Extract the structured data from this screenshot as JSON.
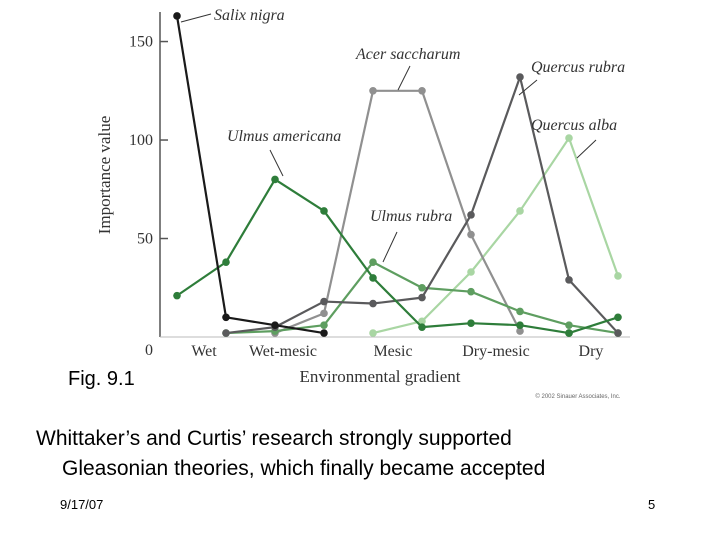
{
  "chart_data": {
    "type": "line",
    "ylabel": "Importance value",
    "xlabel": "Environmental gradient",
    "ylim": [
      0,
      165
    ],
    "yticks": [
      "0",
      "50",
      "100",
      "150"
    ],
    "categories": [
      "Wet",
      "Wet-mesic",
      "Mesic",
      "Dry-mesic",
      "Dry"
    ],
    "copyright": "© 2002 Sinauer Associates, Inc.",
    "series": [
      {
        "name": "Salix nigra",
        "color": "#1a1a1a",
        "x": [
          0,
          1,
          2,
          3
        ],
        "y": [
          163,
          10,
          6,
          2
        ]
      },
      {
        "name": "Ulmus americana",
        "color": "#2e7d3a",
        "x": [
          0,
          1,
          2,
          3,
          4,
          5,
          6,
          7,
          8
        ],
        "y": [
          21,
          38,
          80,
          64,
          30,
          5,
          7,
          6,
          2
        ]
      },
      {
        "name": "Acer saccharum",
        "color": "#909090",
        "x": [
          2,
          3,
          4,
          5,
          6,
          7
        ],
        "y": [
          2,
          12,
          125,
          125,
          52,
          3
        ]
      },
      {
        "name": "Quercus rubra",
        "color": "#5a5a5c",
        "x": [
          1,
          2,
          3,
          4,
          5,
          6,
          7,
          8,
          9
        ],
        "y": [
          2,
          5,
          18,
          17,
          20,
          62,
          132,
          29,
          2
        ]
      },
      {
        "name": "Ulmus rubra",
        "color": "#5e9e60",
        "x": [
          1,
          2,
          3,
          4,
          5,
          6,
          7,
          8,
          9
        ],
        "y": [
          2,
          3,
          6,
          38,
          25,
          23,
          13,
          6,
          2
        ]
      },
      {
        "name": "Quercus alba",
        "color": "#a9d6a3",
        "x": [
          4,
          5,
          6,
          7,
          8,
          9
        ],
        "y": [
          2,
          8,
          33,
          64,
          101,
          31
        ]
      },
      {
        "name": "Ulmus americana (tail)",
        "color": "#2e7d3a",
        "x": [
          8,
          9
        ],
        "y": [
          2,
          10
        ]
      }
    ]
  },
  "slide": {
    "fig_label": "Fig. 9.1",
    "caption_line1": "Whittaker’s and Curtis’ research strongly supported",
    "caption_line2": "Gleasonian theories, which finally became accepted",
    "date": "9/17/07",
    "page_number": "5"
  }
}
